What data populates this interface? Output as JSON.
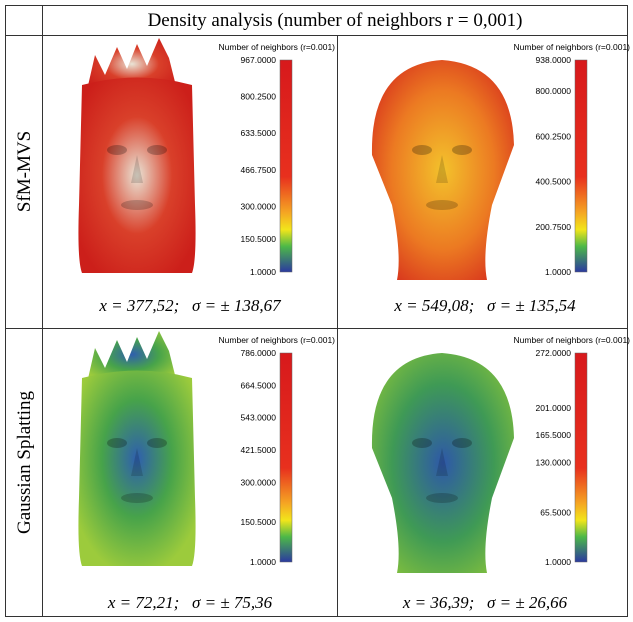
{
  "title": "Density analysis (number of neighbors r = 0,001)",
  "rows": [
    {
      "label": "SfM-MVS",
      "panels": [
        {
          "legend_title": "Number of neighbors (r=0.001)",
          "scale": [
            "967.0000",
            "800.2500",
            "633.5000",
            "466.7500",
            "300.0000",
            "150.5000",
            "1.0000"
          ],
          "stats": "x = 377,52;   σ = ± 138,67"
        },
        {
          "legend_title": "Number of neighbors (r=0.001)",
          "scale": [
            "938.0000",
            "800.0000",
            "600.2500",
            "400.5000",
            "200.7500",
            "1.0000"
          ],
          "stats": "x = 549,08;   σ = ± 135,54"
        }
      ]
    },
    {
      "label": "Gaussian Splatting",
      "panels": [
        {
          "legend_title": "Number of neighbors (r=0.001)",
          "scale": [
            "786.0000",
            "664.5000",
            "543.0000",
            "421.5000",
            "300.0000",
            "150.5000",
            "1.0000"
          ],
          "stats": "x = 72,21;   σ = ± 75,36"
        },
        {
          "legend_title": "Number of neighbors (r=0.001)",
          "scale": [
            "272.0000",
            "201.0000",
            "165.5000",
            "130.0000",
            "65.5000",
            "1.0000"
          ],
          "stats": "x = 36,39;   σ = ± 26,66"
        }
      ]
    }
  ]
}
